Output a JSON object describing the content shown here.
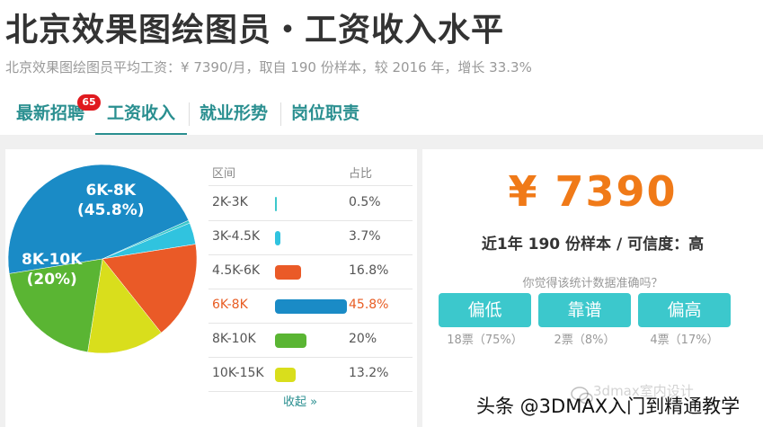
{
  "header": {
    "title": "北京效果图绘图员・工资收入水平",
    "subtitle": "北京效果图绘图员平均工资：¥ 7390/月，取自 190 份样本，较 2016 年，增长 33.3%"
  },
  "tabs": [
    {
      "label": "最新招聘",
      "badge": "65"
    },
    {
      "label": "工资收入",
      "active": true
    },
    {
      "label": "就业形势"
    },
    {
      "label": "岗位职责"
    }
  ],
  "chart_data": {
    "type": "pie",
    "categories": [
      "2K-3K",
      "3K-4.5K",
      "4.5K-6K",
      "6K-8K",
      "8K-10K",
      "10K-15K"
    ],
    "values": [
      0.5,
      3.7,
      16.8,
      45.8,
      20,
      13.2
    ],
    "colors": [
      "#3cc8cc",
      "#30c3df",
      "#ea5a27",
      "#1a8bc6",
      "#5ab533",
      "#d9de1c"
    ],
    "slice_labels": [
      {
        "range": "6K-8K",
        "pct": "(45.8%)"
      },
      {
        "range": "8K-10K",
        "pct": "(20%)"
      }
    ]
  },
  "table": {
    "col_range": "区间",
    "col_pct": "占比",
    "rows": [
      {
        "label": "2K-3K",
        "pct": "0.5%",
        "value": 0.5,
        "color": "#3cc8cc"
      },
      {
        "label": "3K-4.5K",
        "pct": "3.7%",
        "value": 3.7,
        "color": "#30c3df"
      },
      {
        "label": "4.5K-6K",
        "pct": "16.8%",
        "value": 16.8,
        "color": "#ea5a27"
      },
      {
        "label": "6K-8K",
        "pct": "45.8%",
        "value": 45.8,
        "color": "#1a8bc6",
        "highlight": true
      },
      {
        "label": "8K-10K",
        "pct": "20%",
        "value": 20,
        "color": "#5ab533"
      },
      {
        "label": "10K-15K",
        "pct": "13.2%",
        "value": 13.2,
        "color": "#d9de1c"
      }
    ],
    "collapse_label": "收起 »"
  },
  "summary": {
    "salary": "¥ 7390",
    "sample_line": "近1年 190 份样本 / 可信度：高",
    "question": "你觉得该统计数据准确吗？"
  },
  "votes": [
    {
      "label": "偏低",
      "count": "18票（75%）"
    },
    {
      "label": "靠谱",
      "count": "2票（8%）"
    },
    {
      "label": "偏高",
      "count": "4票（17%）"
    }
  ],
  "watermark": {
    "text": "头条 @3DMAX入门到精通教学",
    "ghost": "3dmax室内设计"
  },
  "colors": {
    "accent": "#2a8f90",
    "salary": "#f07a18",
    "button": "#3cc8cc",
    "badge": "#e0191e"
  }
}
